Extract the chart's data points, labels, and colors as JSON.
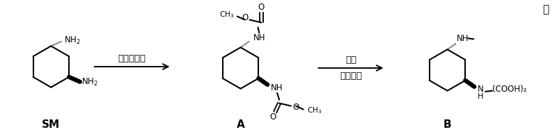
{
  "bg": "#ffffff",
  "fw": 8.0,
  "fh": 1.93,
  "dpi": 100,
  "lw": 1.5,
  "black": "#000000",
  "label_SM": "SM",
  "label_A": "A",
  "label_B": "B",
  "reagent1": "氯甲酸甲酯",
  "reagent2_line1": "氯化铝锂",
  "reagent2_line2": "草酸",
  "cooh2": "(COOH)₂",
  "period": "。"
}
